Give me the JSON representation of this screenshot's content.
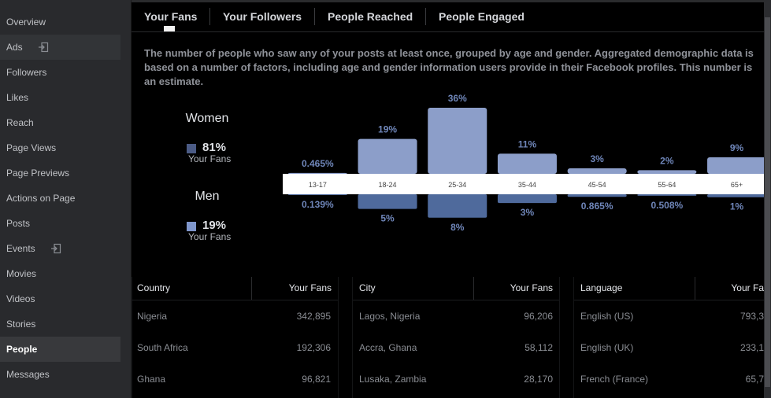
{
  "sidebar": {
    "items": [
      {
        "label": "Overview"
      },
      {
        "label": "Ads",
        "icon": "login-icon"
      },
      {
        "label": "Followers"
      },
      {
        "label": "Likes"
      },
      {
        "label": "Reach"
      },
      {
        "label": "Page Views"
      },
      {
        "label": "Page Previews"
      },
      {
        "label": "Actions on Page"
      },
      {
        "label": "Posts"
      },
      {
        "label": "Events",
        "icon": "login-icon"
      },
      {
        "label": "Movies"
      },
      {
        "label": "Videos"
      },
      {
        "label": "Stories"
      },
      {
        "label": "People",
        "active": true
      },
      {
        "label": "Messages"
      }
    ]
  },
  "tabs": [
    {
      "label": "Your Fans",
      "selected": true
    },
    {
      "label": "Your Followers"
    },
    {
      "label": "People Reached"
    },
    {
      "label": "People Engaged"
    }
  ],
  "description": "The number of people who saw any of your posts at least once, grouped by age and gender. Aggregated demographic data is based on a number of factors, including age and gender information users provide in their Facebook profiles. This number is an estimate.",
  "legend": {
    "women": {
      "label": "Women",
      "value": "81%",
      "sub": "Your Fans",
      "color": "#4b5b85"
    },
    "men": {
      "label": "Men",
      "value": "19%",
      "sub": "Your Fans",
      "color": "#7f96cc"
    }
  },
  "chart_data": {
    "type": "bar",
    "categories": [
      "13-17",
      "18-24",
      "25-34",
      "35-44",
      "45-54",
      "55-64",
      "65+"
    ],
    "series": [
      {
        "name": "Women",
        "values": [
          0.465,
          19,
          36,
          11,
          3,
          2,
          9
        ],
        "labels": [
          "0.465%",
          "19%",
          "36%",
          "11%",
          "3%",
          "2%",
          "9%"
        ],
        "color": "#8c9ec9"
      },
      {
        "name": "Men",
        "values": [
          0.139,
          5,
          8,
          3,
          0.865,
          0.508,
          1
        ],
        "labels": [
          "0.139%",
          "5%",
          "8%",
          "3%",
          "0.865%",
          "0.508%",
          "1%"
        ],
        "color": "#4f6a9c"
      }
    ],
    "ylim": [
      0,
      36
    ]
  },
  "tables": [
    {
      "headers": [
        "Country",
        "Your Fans"
      ],
      "rows": [
        [
          "Nigeria",
          "342,895"
        ],
        [
          "South Africa",
          "192,306"
        ],
        [
          "Ghana",
          "96,821"
        ]
      ]
    },
    {
      "headers": [
        "City",
        "Your Fans"
      ],
      "rows": [
        [
          "Lagos, Nigeria",
          "96,206"
        ],
        [
          "Accra, Ghana",
          "58,112"
        ],
        [
          "Lusaka, Zambia",
          "28,170"
        ]
      ]
    },
    {
      "headers": [
        "Language",
        "Your Fa"
      ],
      "rows": [
        [
          "English (US)",
          "793,3"
        ],
        [
          "English (UK)",
          "233,1"
        ],
        [
          "French (France)",
          "65,7"
        ]
      ]
    }
  ]
}
